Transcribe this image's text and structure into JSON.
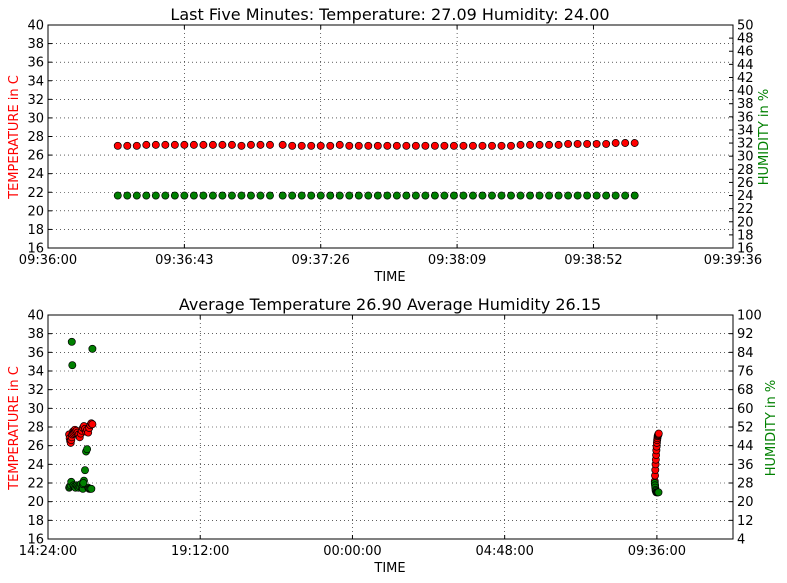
{
  "colors": {
    "temperature": "#ff0000",
    "humidity": "#008000",
    "grid": "#000000",
    "temp_axis_label": "#ff0000",
    "hum_axis_label": "#008000"
  },
  "chart_data": [
    {
      "type": "scatter",
      "title": "Last Five Minutes: Temperature: 27.09  Humidity: 24.00",
      "xlabel": "TIME",
      "ylabel": "TEMPERATURE in C",
      "y2label": "HUMIDITY in %",
      "grid": true,
      "xlim": [
        "09:36:00",
        "09:39:36"
      ],
      "xticks": [
        "09:36:00",
        "09:36:43",
        "09:37:26",
        "09:38:09",
        "09:38:52",
        "09:39:36"
      ],
      "ylim": [
        16,
        40
      ],
      "yticks": [
        "16",
        "18",
        "20",
        "22",
        "24",
        "26",
        "28",
        "30",
        "32",
        "34",
        "36",
        "38",
        "40"
      ],
      "y2lim": [
        16,
        50
      ],
      "y2ticks": [
        "16",
        "18",
        "20",
        "22",
        "24",
        "26",
        "28",
        "30",
        "32",
        "34",
        "36",
        "38",
        "40",
        "42",
        "44",
        "46",
        "48",
        "50"
      ],
      "series": [
        {
          "axis": "left",
          "x": [
            "09:36:22",
            "09:36:25",
            "09:36:28",
            "09:36:31",
            "09:36:34",
            "09:36:37",
            "09:36:40",
            "09:36:43",
            "09:36:46",
            "09:36:49",
            "09:36:52",
            "09:36:55",
            "09:36:58",
            "09:37:01",
            "09:37:04",
            "09:37:07",
            "09:37:10",
            "09:37:14",
            "09:37:17",
            "09:37:20",
            "09:37:23",
            "09:37:26",
            "09:37:29",
            "09:37:32",
            "09:37:35",
            "09:37:38",
            "09:37:41",
            "09:37:44",
            "09:37:47",
            "09:37:50",
            "09:37:53",
            "09:37:56",
            "09:37:59",
            "09:38:02",
            "09:38:05",
            "09:38:08",
            "09:38:11",
            "09:38:14",
            "09:38:17",
            "09:38:20",
            "09:38:23",
            "09:38:26",
            "09:38:29",
            "09:38:32",
            "09:38:35",
            "09:38:38",
            "09:38:41",
            "09:38:44",
            "09:38:47",
            "09:38:50",
            "09:38:53",
            "09:38:56",
            "09:38:59",
            "09:39:02",
            "09:39:05"
          ],
          "y": [
            27.0,
            27.0,
            27.0,
            27.1,
            27.1,
            27.1,
            27.1,
            27.1,
            27.1,
            27.1,
            27.1,
            27.1,
            27.1,
            27.0,
            27.1,
            27.1,
            27.1,
            27.1,
            27.0,
            27.0,
            27.0,
            27.0,
            27.0,
            27.1,
            27.0,
            27.0,
            27.0,
            27.0,
            27.0,
            27.0,
            27.0,
            27.0,
            27.0,
            27.0,
            27.0,
            27.0,
            27.0,
            27.0,
            27.0,
            27.0,
            27.0,
            27.0,
            27.1,
            27.1,
            27.1,
            27.1,
            27.1,
            27.2,
            27.2,
            27.2,
            27.2,
            27.2,
            27.3,
            27.3,
            27.3
          ]
        },
        {
          "axis": "right",
          "x": [
            "09:36:22",
            "09:36:25",
            "09:36:28",
            "09:36:31",
            "09:36:34",
            "09:36:37",
            "09:36:40",
            "09:36:43",
            "09:36:46",
            "09:36:49",
            "09:36:52",
            "09:36:55",
            "09:36:58",
            "09:37:01",
            "09:37:04",
            "09:37:07",
            "09:37:10",
            "09:37:14",
            "09:37:17",
            "09:37:20",
            "09:37:23",
            "09:37:26",
            "09:37:29",
            "09:37:32",
            "09:37:35",
            "09:37:38",
            "09:37:41",
            "09:37:44",
            "09:37:47",
            "09:37:50",
            "09:37:53",
            "09:37:56",
            "09:37:59",
            "09:38:02",
            "09:38:05",
            "09:38:08",
            "09:38:11",
            "09:38:14",
            "09:38:17",
            "09:38:20",
            "09:38:23",
            "09:38:26",
            "09:38:29",
            "09:38:32",
            "09:38:35",
            "09:38:38",
            "09:38:41",
            "09:38:44",
            "09:38:47",
            "09:38:50",
            "09:38:53",
            "09:38:56",
            "09:38:59",
            "09:39:02",
            "09:39:05"
          ],
          "y": [
            24.0,
            24.0,
            24.0,
            24.0,
            24.0,
            24.0,
            24.0,
            24.0,
            24.0,
            24.0,
            24.0,
            24.0,
            24.0,
            24.0,
            24.0,
            24.0,
            24.0,
            24.0,
            24.0,
            24.0,
            24.0,
            24.0,
            24.0,
            24.0,
            24.0,
            24.0,
            24.0,
            24.0,
            24.0,
            24.0,
            24.0,
            24.0,
            24.0,
            24.0,
            24.0,
            24.0,
            24.0,
            24.0,
            24.0,
            24.0,
            24.0,
            24.0,
            24.0,
            24.0,
            24.0,
            24.0,
            24.0,
            24.0,
            24.0,
            24.0,
            24.0,
            24.0,
            24.0,
            24.0,
            24.0
          ]
        }
      ]
    },
    {
      "type": "scatter",
      "title": "Average Temperature 26.90   Average Humidity 26.15",
      "xlabel": "TIME",
      "ylabel": "TEMPERATURE in C",
      "y2label": "HUMIDITY in %",
      "grid": true,
      "xlim": [
        "14:24:00",
        "12:00:00"
      ],
      "xticks": [
        "14:24:00",
        "19:12:00",
        "00:00:00",
        "04:48:00",
        "09:36:00"
      ],
      "ylim": [
        16,
        40
      ],
      "yticks": [
        "16",
        "18",
        "20",
        "22",
        "24",
        "26",
        "28",
        "30",
        "32",
        "34",
        "36",
        "38",
        "40"
      ],
      "y2lim": [
        4,
        100
      ],
      "y2ticks": [
        "4",
        "12",
        "20",
        "28",
        "36",
        "44",
        "52",
        "60",
        "68",
        "76",
        "84",
        "92",
        "100"
      ],
      "series": [
        {
          "axis": "left",
          "x": [
            "15:04:00",
            "15:05:00",
            "15:06:00",
            "15:07:00",
            "15:08:00",
            "15:09:00",
            "15:10:00",
            "15:11:00",
            "15:12:00",
            "15:13:00",
            "15:14:00",
            "15:15:00",
            "15:16:00",
            "15:18:00",
            "15:20:00",
            "15:22:00",
            "15:24:00",
            "15:26:00",
            "15:28:00",
            "15:30:00",
            "15:32:00",
            "15:34:00",
            "15:36:00",
            "15:38:00",
            "15:40:00",
            "15:42:00",
            "15:44:00",
            "15:46:00",
            "15:48:00",
            "09:32:00",
            "09:32:30",
            "09:33:00",
            "09:33:30",
            "09:34:00",
            "09:34:30",
            "09:35:00",
            "09:35:30",
            "09:36:00",
            "09:36:30",
            "09:37:00",
            "09:37:30",
            "09:38:00",
            "09:38:30",
            "09:39:00",
            "09:39:30"
          ],
          "y": [
            27.2,
            26.8,
            26.5,
            26.3,
            26.6,
            26.9,
            27.2,
            27.5,
            27.3,
            27.6,
            27.4,
            27.7,
            27.5,
            27.6,
            27.4,
            27.2,
            26.9,
            27.3,
            27.6,
            27.9,
            28.1,
            27.8,
            27.5,
            27.7,
            27.4,
            27.9,
            28.2,
            28.4,
            28.3,
            22.2,
            22.8,
            23.4,
            24.0,
            24.5,
            25.0,
            25.5,
            25.9,
            26.3,
            26.6,
            26.8,
            27.0,
            27.1,
            27.2,
            27.2,
            27.3
          ]
        },
        {
          "axis": "right",
          "x": [
            "15:04:00",
            "15:05:00",
            "15:07:00",
            "15:08:00",
            "15:09:00",
            "15:10:00",
            "15:12:00",
            "15:14:00",
            "15:16:00",
            "15:18:00",
            "15:20:00",
            "15:22:00",
            "15:24:00",
            "15:26:00",
            "15:28:00",
            "15:30:00",
            "15:32:00",
            "15:34:00",
            "15:36:00",
            "15:38:00",
            "15:40:00",
            "15:42:00",
            "15:44:00",
            "15:46:00",
            "15:48:00",
            "15:30:00",
            "15:31:00",
            "09:32:00",
            "09:32:30",
            "09:33:00",
            "09:33:30",
            "09:34:00",
            "09:35:00",
            "09:36:00",
            "09:37:00",
            "09:38:00",
            "09:39:00"
          ],
          "y": [
            26.0,
            26.5,
            27.0,
            28.5,
            88.5,
            78.5,
            27.0,
            26.5,
            26.0,
            27.0,
            26.5,
            26.0,
            26.5,
            27.5,
            26.0,
            25.5,
            29.0,
            33.5,
            41.5,
            42.5,
            26.0,
            25.5,
            25.5,
            25.5,
            85.5,
            27.5,
            28.0,
            28.0,
            27.0,
            26.0,
            25.0,
            24.5,
            24.0,
            24.0,
            24.0,
            24.0,
            24.0
          ]
        }
      ]
    }
  ]
}
